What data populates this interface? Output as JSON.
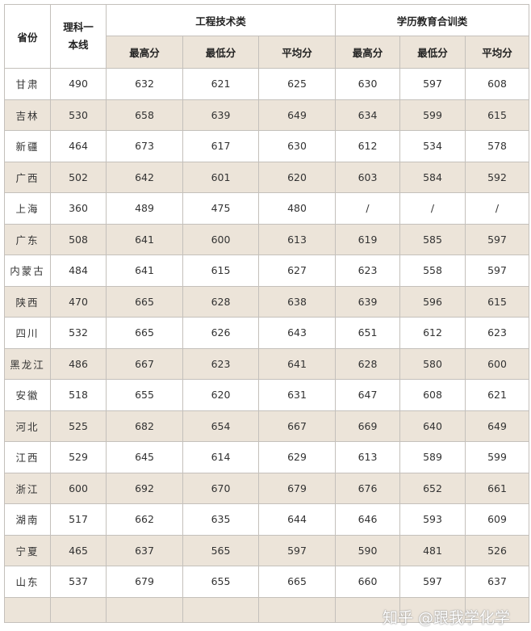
{
  "header": {
    "province": "省份",
    "baseline": "理科一本线",
    "group1": "工程技术类",
    "group2": "学历教育合训类",
    "sub": [
      "最高分",
      "最低分",
      "平均分",
      "最高分",
      "最低分",
      "平均分"
    ]
  },
  "rows": [
    [
      "甘肃",
      "490",
      "632",
      "621",
      "625",
      "630",
      "597",
      "608"
    ],
    [
      "吉林",
      "530",
      "658",
      "639",
      "649",
      "634",
      "599",
      "615"
    ],
    [
      "新疆",
      "464",
      "673",
      "617",
      "630",
      "612",
      "534",
      "578"
    ],
    [
      "广西",
      "502",
      "642",
      "601",
      "620",
      "603",
      "584",
      "592"
    ],
    [
      "上海",
      "360",
      "489",
      "475",
      "480",
      "/",
      "/",
      "/"
    ],
    [
      "广东",
      "508",
      "641",
      "600",
      "613",
      "619",
      "585",
      "597"
    ],
    [
      "内蒙古",
      "484",
      "641",
      "615",
      "627",
      "623",
      "558",
      "597"
    ],
    [
      "陕西",
      "470",
      "665",
      "628",
      "638",
      "639",
      "596",
      "615"
    ],
    [
      "四川",
      "532",
      "665",
      "626",
      "643",
      "651",
      "612",
      "623"
    ],
    [
      "黑龙江",
      "486",
      "667",
      "623",
      "641",
      "628",
      "580",
      "600"
    ],
    [
      "安徽",
      "518",
      "655",
      "620",
      "631",
      "647",
      "608",
      "621"
    ],
    [
      "河北",
      "525",
      "682",
      "654",
      "667",
      "669",
      "640",
      "649"
    ],
    [
      "江西",
      "529",
      "645",
      "614",
      "629",
      "613",
      "589",
      "599"
    ],
    [
      "浙江",
      "600",
      "692",
      "670",
      "679",
      "676",
      "652",
      "661"
    ],
    [
      "湖南",
      "517",
      "662",
      "635",
      "644",
      "646",
      "593",
      "609"
    ],
    [
      "宁夏",
      "465",
      "637",
      "565",
      "597",
      "590",
      "481",
      "526"
    ],
    [
      "山东",
      "537",
      "679",
      "655",
      "665",
      "660",
      "597",
      "637"
    ]
  ],
  "watermark": "知乎 @跟我学化学"
}
